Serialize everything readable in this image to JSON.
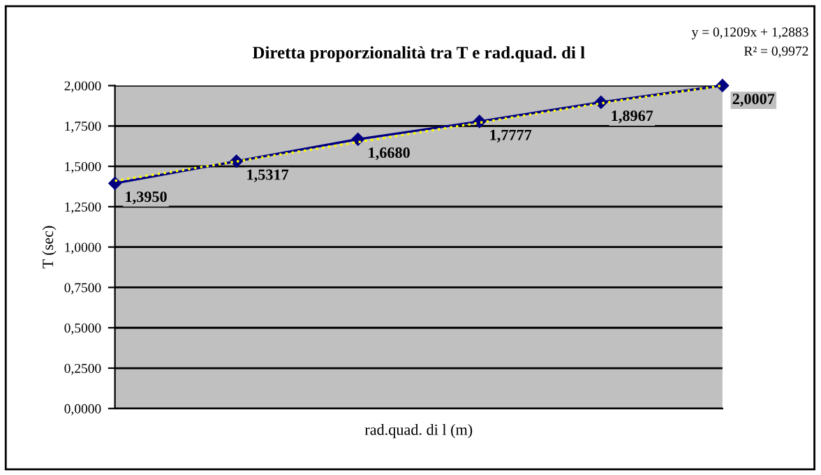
{
  "chart_data": {
    "type": "line",
    "title": "Diretta proporzionalità tra T e rad.quad. di l",
    "xlabel": "rad.quad. di l (m)",
    "ylabel": "T (sec)",
    "categories": [
      null,
      null,
      null,
      null,
      null,
      null
    ],
    "series": [
      {
        "color": "#000080",
        "values": [
          1.395,
          1.5317,
          1.668,
          1.7777,
          1.8967,
          2.0007
        ],
        "marker": "diamond",
        "line_style": "solid",
        "value_labels": [
          "1,3950",
          "1,5317",
          "1,6680",
          "1,7777",
          "1,8967",
          "2,0007"
        ]
      },
      {
        "color": "#ffff00",
        "values": [
          1.41,
          1.53,
          1.65,
          1.77,
          1.89,
          2.0
        ],
        "marker": "none",
        "line_style": "dotted"
      }
    ],
    "annotations": [
      "y = 0,1209x + 1,2883",
      "R² = 0,9972"
    ],
    "ylim": [
      0,
      2.0007
    ],
    "yticks": [
      {
        "value": 0,
        "label": "0,0000"
      },
      {
        "value": 0.25,
        "label": "0,2500"
      },
      {
        "value": 0.5,
        "label": "0,5000"
      },
      {
        "value": 0.75,
        "label": "0,7500"
      },
      {
        "value": 1,
        "label": "1,0000"
      },
      {
        "value": 1.25,
        "label": "1,2500"
      },
      {
        "value": 1.5,
        "label": "1,5000"
      },
      {
        "value": 1.75,
        "label": "1,7500"
      },
      {
        "value": 2,
        "label": "2,0000"
      }
    ],
    "grid": "y",
    "legend": false
  }
}
